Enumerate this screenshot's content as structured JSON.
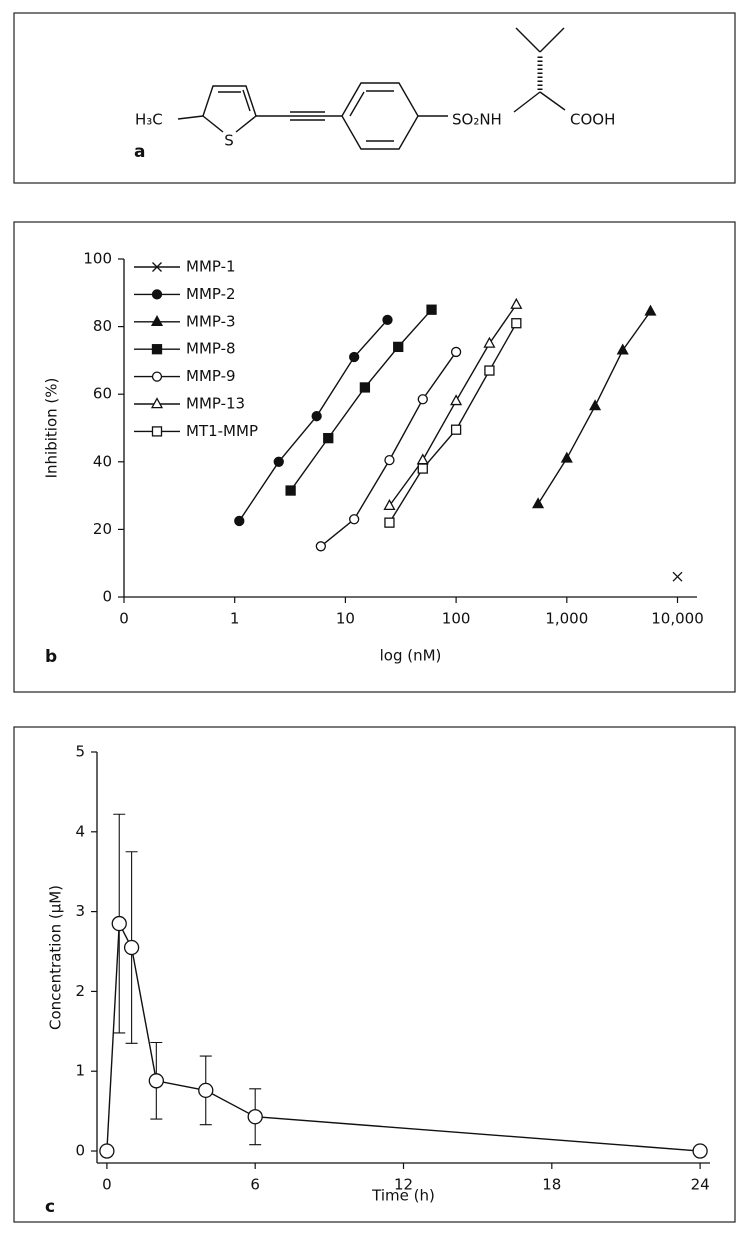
{
  "figure": {
    "panel_a": {
      "label": "a",
      "atoms": {
        "methyl": "H₃C",
        "sulfur": "S",
        "sulfonamide": "SO₂NH",
        "acid": "COOH"
      }
    }
  },
  "chart_data": [
    {
      "type": "line",
      "panel_label": "b",
      "x_label": "log (nM)",
      "y_label": "Inhibition (%)",
      "xscale": "log",
      "xlim": [
        0.1,
        15000
      ],
      "ylim": [
        0,
        100
      ],
      "xticks": [
        0,
        1,
        10,
        100,
        {
          "value": 1000,
          "label": "1,000"
        },
        {
          "value": 10000,
          "label": "10,000"
        }
      ],
      "yticks": [
        0,
        20,
        40,
        60,
        80,
        100
      ],
      "legend": "upper left",
      "series": [
        {
          "name": "MMP-1",
          "marker": "x",
          "filled": true,
          "color": "#111111",
          "x": [
            10000
          ],
          "values": [
            6
          ]
        },
        {
          "name": "MMP-2",
          "marker": "circle",
          "filled": true,
          "color": "#111111",
          "x": [
            1.1,
            2.5,
            5.5,
            12,
            24
          ],
          "values": [
            22.5,
            40,
            53.5,
            71,
            82
          ]
        },
        {
          "name": "MMP-3",
          "marker": "triangle",
          "filled": true,
          "color": "#111111",
          "x": [
            550,
            1000,
            1800,
            3200,
            5700
          ],
          "values": [
            27.5,
            41,
            56.5,
            73,
            84.5
          ]
        },
        {
          "name": "MMP-8",
          "marker": "square",
          "filled": true,
          "color": "#111111",
          "x": [
            3.2,
            7,
            15,
            30,
            60
          ],
          "values": [
            31.5,
            47,
            62,
            74,
            85
          ]
        },
        {
          "name": "MMP-9",
          "marker": "circle",
          "filled": false,
          "color": "#111111",
          "x": [
            6,
            12,
            25,
            50,
            100
          ],
          "values": [
            15,
            23,
            40.5,
            58.5,
            72.5
          ]
        },
        {
          "name": "MMP-13",
          "marker": "triangle",
          "filled": false,
          "color": "#111111",
          "x": [
            25,
            50,
            100,
            200,
            350
          ],
          "values": [
            27,
            40.5,
            58,
            75,
            86.5
          ]
        },
        {
          "name": "MT1-MMP",
          "marker": "square",
          "filled": false,
          "color": "#111111",
          "x": [
            25,
            50,
            100,
            200,
            350
          ],
          "values": [
            22,
            38,
            49.5,
            67,
            81
          ]
        }
      ]
    },
    {
      "type": "line",
      "panel_label": "c",
      "x_label": "Time (h)",
      "y_label": "Concentration (µM)",
      "xscale": "linear",
      "xlim": [
        -0.4,
        24.4
      ],
      "ylim": [
        -0.15,
        5
      ],
      "xticks": [
        0,
        6,
        12,
        18,
        24
      ],
      "yticks": [
        0,
        1,
        2,
        3,
        4,
        5
      ],
      "series": [
        {
          "marker": "circle",
          "filled": false,
          "color": "#111111",
          "x": [
            0,
            0.5,
            1,
            2,
            4,
            6,
            24
          ],
          "values": [
            0,
            2.85,
            2.55,
            0.88,
            0.76,
            0.43,
            0
          ],
          "errors": [
            null,
            1.37,
            1.2,
            0.48,
            0.43,
            0.35,
            null
          ]
        }
      ]
    }
  ]
}
